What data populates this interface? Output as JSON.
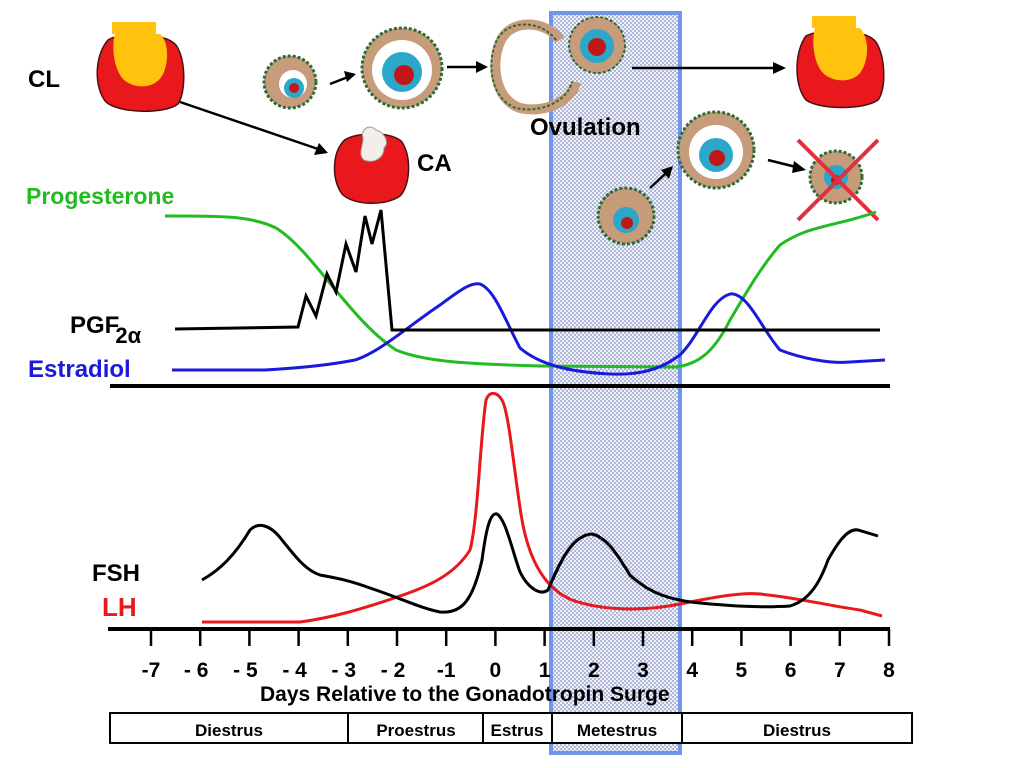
{
  "labels": {
    "cl": "CL",
    "ca": "CA",
    "ovulation": "Ovulation",
    "progesterone": "Progesterone",
    "pgf": "PGF",
    "pgf_sub": "2α",
    "estradiol": "Estradiol",
    "fsh": "FSH",
    "lh": "LH"
  },
  "colors": {
    "progesterone": "#22bb22",
    "estradiol": "#1a1adb",
    "pgf": "#000000",
    "fsh": "#000000",
    "lh": "#e8181d",
    "cl_red": "#e8181d",
    "cl_yellow": "#ffc20e",
    "metestrus_box": "#6f95ea",
    "follicle_granulosa": "#c69c7b",
    "follicle_theca": "#2e6b34",
    "follicle_oocyte": "#2aa7c9",
    "cross": "#e03040"
  },
  "axis": {
    "title": "Days Relative to the Gonadotropin Surge",
    "ticks": [
      "-7",
      "- 6",
      "- 5",
      "- 4",
      "- 3",
      "- 2",
      "-1",
      "0",
      "1",
      "2",
      "3",
      "4",
      "5",
      "6",
      "7",
      "8"
    ]
  },
  "phases": [
    "Diestrus",
    "Proestrus",
    "Estrus",
    "Metestrus",
    "Diestrus"
  ],
  "icons": [
    "corpus-luteum-icon",
    "corpus-albicans-icon",
    "follicle-icon",
    "ruptured-follicle-icon",
    "regressed-corpus-luteum-icon",
    "atretic-follicle-icon"
  ]
}
